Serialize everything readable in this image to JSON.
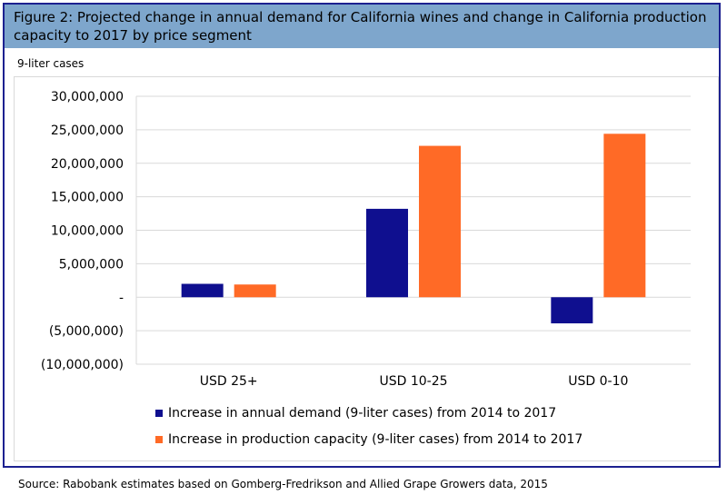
{
  "figure": {
    "title": "Figure 2: Projected change in annual demand for California wines and change in California production capacity to 2017 by price segment",
    "unit_label": "9-liter cases",
    "source": "Source: Rabobank estimates based on Gomberg-Fredrikson and Allied Grape Growers data, 2015"
  },
  "chart_data": {
    "type": "bar",
    "title": "Figure 2: Projected change in annual demand for California wines and change in California production capacity to 2017 by price segment",
    "ylabel": "9-liter cases",
    "xlabel": "",
    "categories": [
      "USD 25+",
      "USD 10-25",
      "USD 0-10"
    ],
    "series": [
      {
        "name": "Increase in annual demand (9-liter cases) from 2014 to 2017",
        "color": "#0f0f8f",
        "values": [
          2000000,
          13200000,
          -3900000
        ]
      },
      {
        "name": "Increase in production capacity (9-liter cases) from 2014 to 2017",
        "color": "#ff6a26",
        "values": [
          1900000,
          22600000,
          24400000
        ]
      }
    ],
    "ylim": [
      -10000000,
      30000000
    ],
    "yticks": [
      30000000,
      25000000,
      20000000,
      15000000,
      10000000,
      5000000,
      0,
      -5000000,
      -10000000
    ],
    "ytick_labels": [
      "30,000,000",
      "25,000,000",
      "20,000,000",
      "15,000,000",
      "10,000,000",
      "5,000,000",
      "-",
      "(5,000,000)",
      "(10,000,000)"
    ],
    "grid": true,
    "legend_position": "bottom"
  }
}
